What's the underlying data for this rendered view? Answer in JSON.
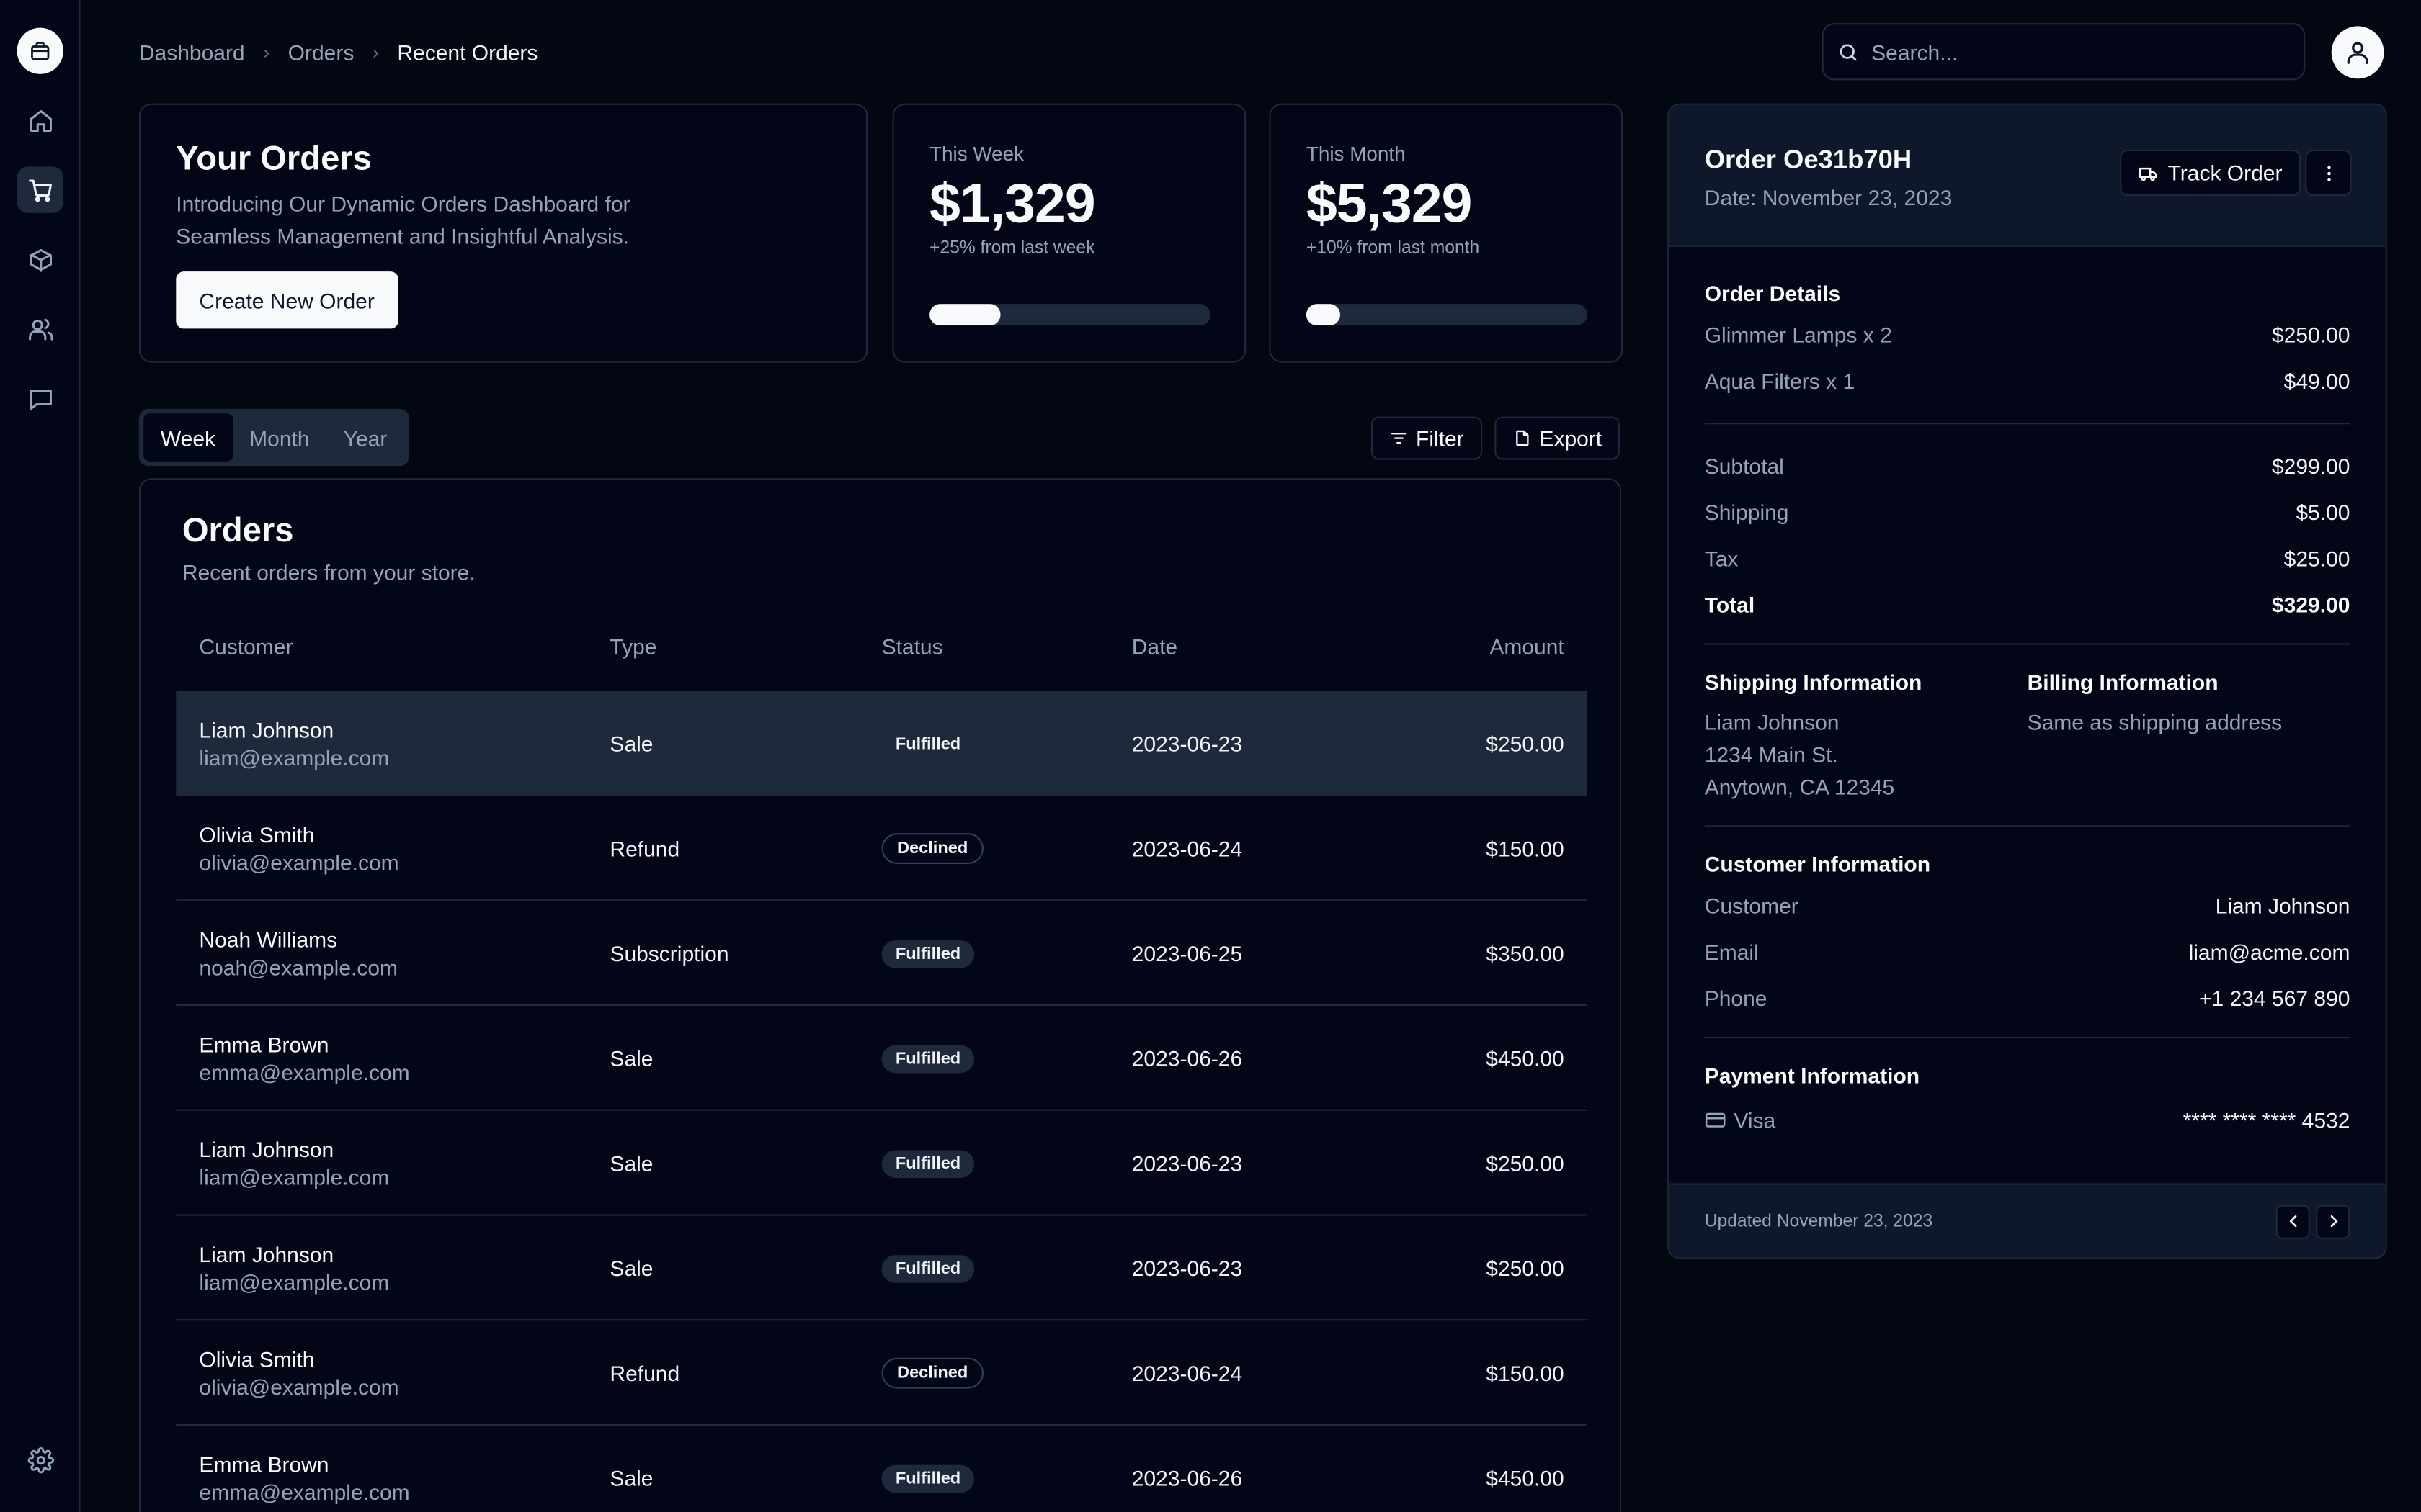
{
  "breadcrumb": [
    "Dashboard",
    "Orders",
    "Recent Orders"
  ],
  "search": {
    "placeholder": "Search..."
  },
  "hero": {
    "title": "Your Orders",
    "description": "Introducing Our Dynamic Orders Dashboard for Seamless Management and Insightful Analysis.",
    "button": "Create New Order"
  },
  "stats": [
    {
      "label": "This Week",
      "value": "$1,329",
      "delta": "+25% from last week",
      "progress": 25
    },
    {
      "label": "This Month",
      "value": "$5,329",
      "delta": "+10% from last month",
      "progress": 12
    }
  ],
  "tabs": [
    "Week",
    "Month",
    "Year"
  ],
  "actions": {
    "filter": "Filter",
    "export": "Export"
  },
  "orders": {
    "title": "Orders",
    "subtitle": "Recent orders from your store.",
    "columns": [
      "Customer",
      "Type",
      "Status",
      "Date",
      "Amount"
    ],
    "rows": [
      {
        "name": "Liam Johnson",
        "email": "liam@example.com",
        "type": "Sale",
        "status": "Fulfilled",
        "date": "2023-06-23",
        "amount": "$250.00"
      },
      {
        "name": "Olivia Smith",
        "email": "olivia@example.com",
        "type": "Refund",
        "status": "Declined",
        "date": "2023-06-24",
        "amount": "$150.00"
      },
      {
        "name": "Noah Williams",
        "email": "noah@example.com",
        "type": "Subscription",
        "status": "Fulfilled",
        "date": "2023-06-25",
        "amount": "$350.00"
      },
      {
        "name": "Emma Brown",
        "email": "emma@example.com",
        "type": "Sale",
        "status": "Fulfilled",
        "date": "2023-06-26",
        "amount": "$450.00"
      },
      {
        "name": "Liam Johnson",
        "email": "liam@example.com",
        "type": "Sale",
        "status": "Fulfilled",
        "date": "2023-06-23",
        "amount": "$250.00"
      },
      {
        "name": "Liam Johnson",
        "email": "liam@example.com",
        "type": "Sale",
        "status": "Fulfilled",
        "date": "2023-06-23",
        "amount": "$250.00"
      },
      {
        "name": "Olivia Smith",
        "email": "olivia@example.com",
        "type": "Refund",
        "status": "Declined",
        "date": "2023-06-24",
        "amount": "$150.00"
      },
      {
        "name": "Emma Brown",
        "email": "emma@example.com",
        "type": "Sale",
        "status": "Fulfilled",
        "date": "2023-06-26",
        "amount": "$450.00"
      }
    ]
  },
  "detail": {
    "title": "Order Oe31b70H",
    "date": "Date: November 23, 2023",
    "track_button": "Track Order",
    "order_details_title": "Order Details",
    "items": [
      {
        "k": "Glimmer Lamps x 2",
        "v": "$250.00"
      },
      {
        "k": "Aqua Filters x 1",
        "v": "$49.00"
      }
    ],
    "summary": [
      {
        "k": "Subtotal",
        "v": "$299.00"
      },
      {
        "k": "Shipping",
        "v": "$5.00"
      },
      {
        "k": "Tax",
        "v": "$25.00"
      }
    ],
    "total": {
      "k": "Total",
      "v": "$329.00"
    },
    "shipping_title": "Shipping Information",
    "shipping_lines": [
      "Liam Johnson",
      "1234 Main St.",
      "Anytown, CA 12345"
    ],
    "billing_title": "Billing Information",
    "billing_text": "Same as shipping address",
    "customer_title": "Customer Information",
    "customer": [
      {
        "k": "Customer",
        "v": "Liam Johnson"
      },
      {
        "k": "Email",
        "v": "liam@acme.com"
      },
      {
        "k": "Phone",
        "v": "+1 234 567 890"
      }
    ],
    "payment_title": "Payment Information",
    "payment_method": "Visa",
    "card_number": "**** **** **** 4532",
    "updated": "Updated November 23, 2023"
  },
  "icons": {
    "logo": "package-icon",
    "nav": [
      "home-icon",
      "cart-icon",
      "box-icon",
      "users-icon",
      "message-icon"
    ],
    "settings": "gear-icon"
  }
}
